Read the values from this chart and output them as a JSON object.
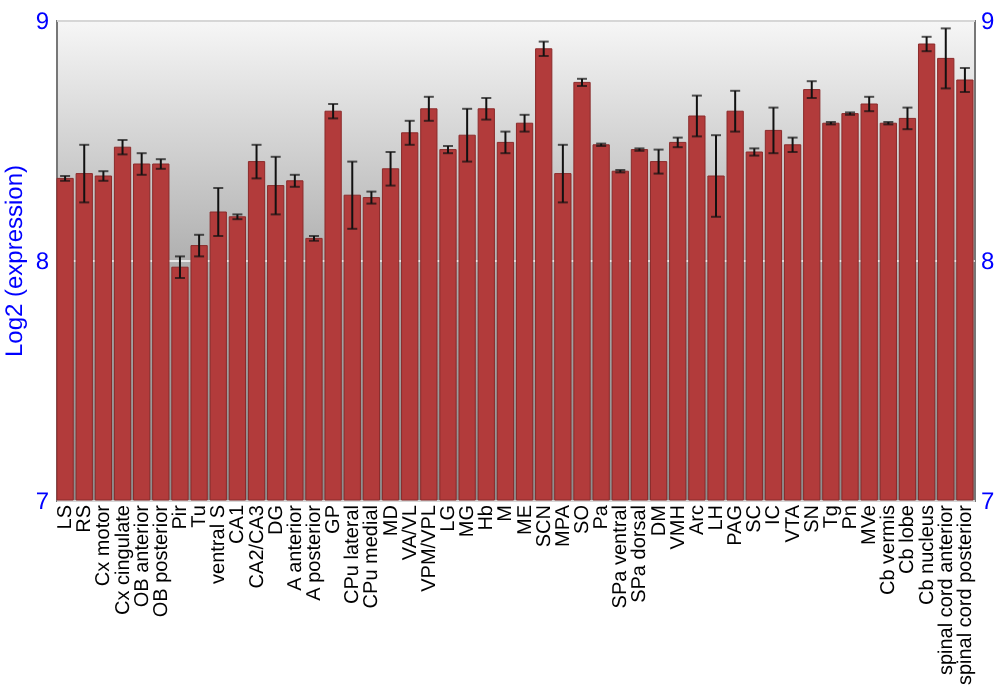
{
  "chart_data": {
    "type": "bar",
    "ylabel": "Log2 (expression)",
    "categories": [
      "LS",
      "RS",
      "Cx motor",
      "Cx cingulate",
      "OB anterior",
      "OB posterior",
      "Pir",
      "Tu",
      "ventral S",
      "CA1",
      "CA2/CA3",
      "DG",
      "A anterior",
      "A posterior",
      "GP",
      "CPu lateral",
      "CPu medial",
      "MD",
      "VA/VL",
      "VPM/VPL",
      "LG",
      "MG",
      "Hb",
      "M",
      "ME",
      "SCN",
      "MPA",
      "SO",
      "Pa",
      "SPa ventral",
      "SPa dorsal",
      "DM",
      "VMH",
      "Arc",
      "LH",
      "PAG",
      "SC",
      "IC",
      "VTA",
      "SN",
      "Tg",
      "Pn",
      "MVe",
      "Cb vermis",
      "Cb lobe",
      "Cb nucleus",
      "spinal cord anterior",
      "spinal cord posterior"
    ],
    "values": [
      8.34,
      8.36,
      8.35,
      8.47,
      8.4,
      8.4,
      7.97,
      8.06,
      8.2,
      8.18,
      8.41,
      8.31,
      8.33,
      8.09,
      8.62,
      8.27,
      8.26,
      8.38,
      8.53,
      8.63,
      8.46,
      8.52,
      8.63,
      8.49,
      8.57,
      8.88,
      8.36,
      8.74,
      8.48,
      8.37,
      8.46,
      8.41,
      8.49,
      8.6,
      8.35,
      8.62,
      8.45,
      8.54,
      8.48,
      8.71,
      8.57,
      8.61,
      8.65,
      8.57,
      8.59,
      8.9,
      8.84,
      8.75
    ],
    "errors": [
      0.01,
      0.12,
      0.02,
      0.03,
      0.045,
      0.02,
      0.045,
      0.045,
      0.1,
      0.01,
      0.07,
      0.12,
      0.025,
      0.01,
      0.03,
      0.14,
      0.025,
      0.07,
      0.05,
      0.05,
      0.015,
      0.11,
      0.045,
      0.045,
      0.035,
      0.03,
      0.12,
      0.015,
      0.005,
      0.005,
      0.005,
      0.05,
      0.02,
      0.085,
      0.17,
      0.085,
      0.015,
      0.095,
      0.03,
      0.035,
      0.005,
      0.005,
      0.03,
      0.005,
      0.045,
      0.03,
      0.125,
      0.05
    ],
    "color": "#b23b3b",
    "ylim": [
      7,
      9
    ],
    "yticks": [
      7,
      8,
      9
    ],
    "y2lim": [
      7,
      9
    ],
    "y2ticks": [
      7,
      8,
      9
    ],
    "grid": "y"
  }
}
